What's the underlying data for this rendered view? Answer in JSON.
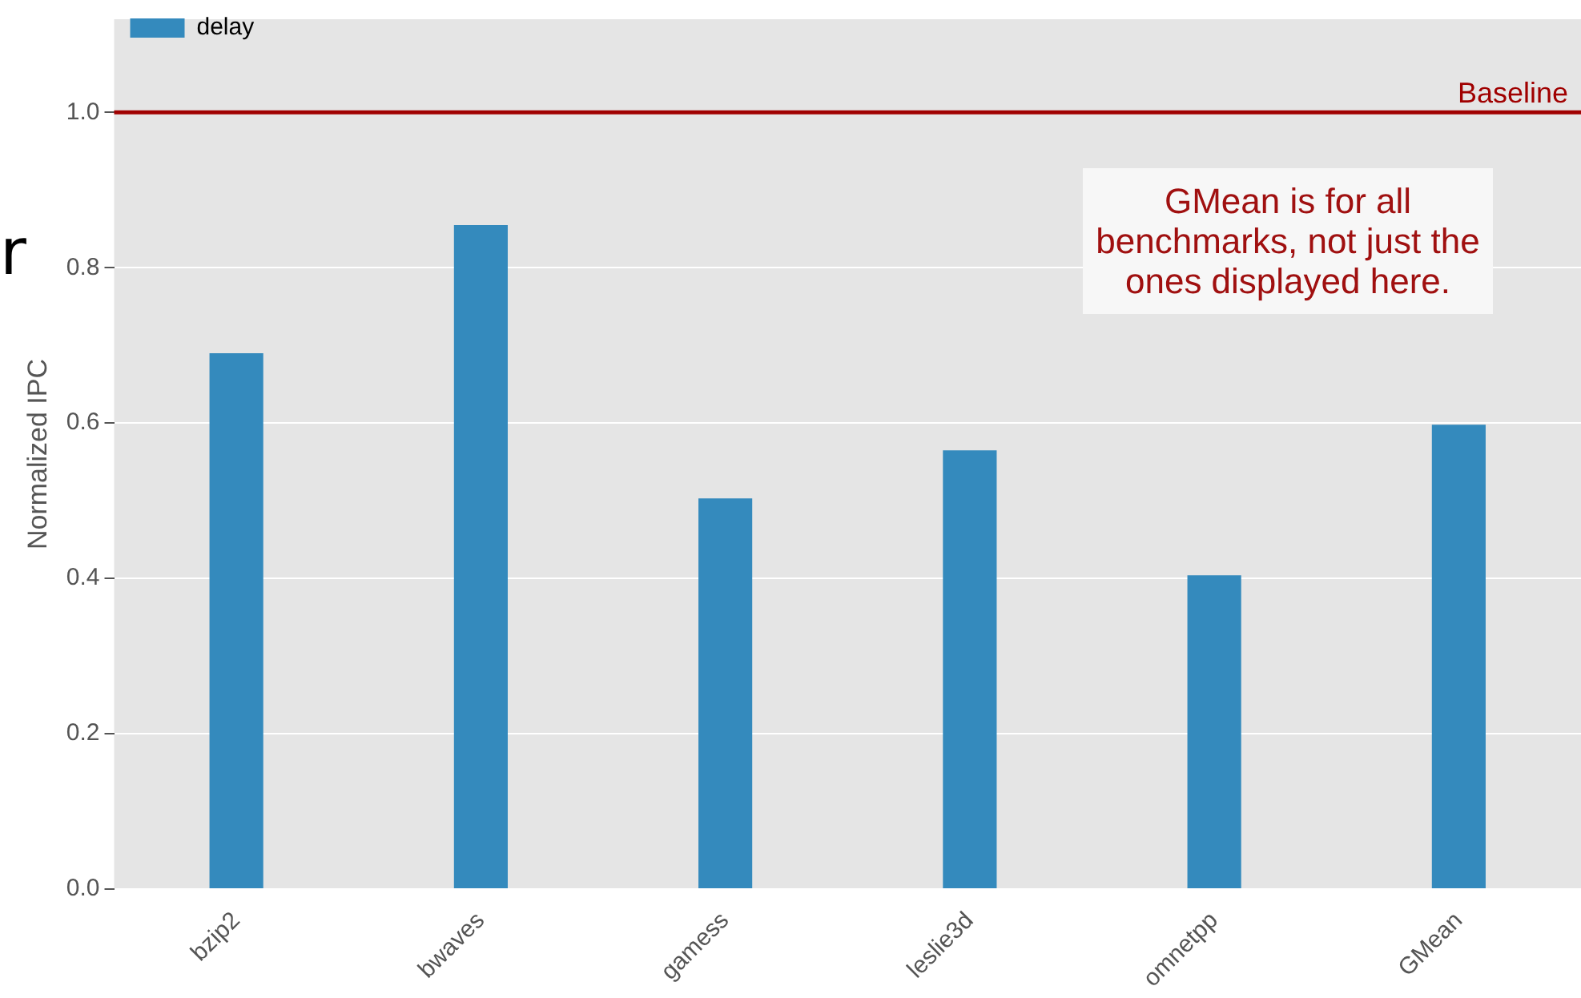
{
  "chart_data": {
    "type": "bar",
    "ylabel": "Normalized IPC",
    "categories": [
      "bzip2",
      "bwaves",
      "gamess",
      "leslie3d",
      "omnetpp",
      "GMean"
    ],
    "series": [
      {
        "name": "delay",
        "color": "#348abd",
        "values": [
          0.69,
          0.855,
          0.503,
          0.565,
          0.404,
          0.598
        ]
      }
    ],
    "ylim": [
      0,
      1.12
    ],
    "yticks": [
      {
        "value": 0,
        "label": "0.0"
      },
      {
        "value": 0.2,
        "label": "0.2"
      },
      {
        "value": 0.4,
        "label": "0.4"
      },
      {
        "value": 0.6,
        "label": "0.6"
      },
      {
        "value": 0.8,
        "label": "0.8"
      },
      {
        "value": 1,
        "label": "1.0"
      }
    ],
    "grid": "y",
    "legend": "top left",
    "ref_lines": [
      {
        "axis": "y",
        "value": 1,
        "label": "Baseline",
        "color": "#a00000"
      }
    ],
    "annotations": [
      "GMean is for all benchmarks, not just the ones displayed here.",
      "r"
    ]
  }
}
